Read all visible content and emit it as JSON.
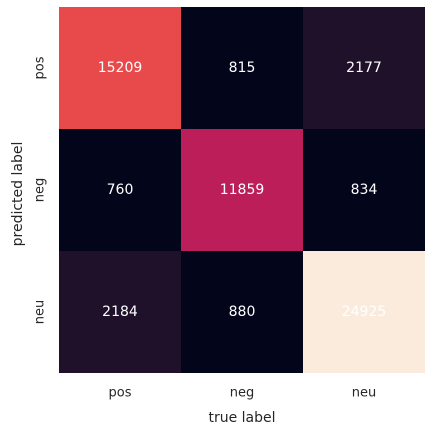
{
  "chart_data": {
    "type": "heatmap",
    "title": "",
    "xlabel": "true label",
    "ylabel": "predicted label",
    "x_categories": [
      "pos",
      "neg",
      "neu"
    ],
    "y_categories": [
      "pos",
      "neg",
      "neu"
    ],
    "values": [
      [
        15209,
        815,
        2177
      ],
      [
        760,
        11859,
        834
      ],
      [
        2184,
        880,
        24925
      ]
    ],
    "cell_colors": [
      [
        "#E8494A",
        "#03051A",
        "#1E1129"
      ],
      [
        "#03051A",
        "#BC1E5A",
        "#03051A"
      ],
      [
        "#1E1129",
        "#03051A",
        "#FAEBDD"
      ]
    ],
    "text_colors": [
      [
        "#ffffff",
        "#ffffff",
        "#ffffff"
      ],
      [
        "#ffffff",
        "#ffffff",
        "#ffffff"
      ],
      [
        "#ffffff",
        "#ffffff",
        "#ffffff"
      ]
    ],
    "colorbar": false,
    "grid": false
  }
}
